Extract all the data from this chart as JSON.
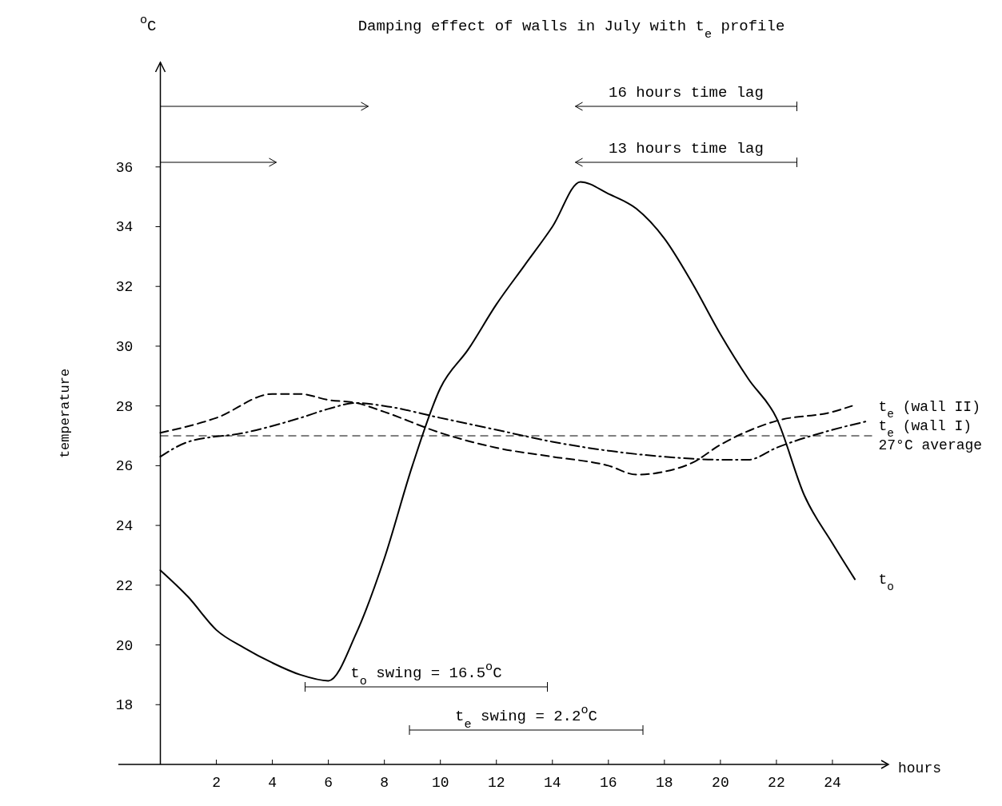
{
  "chart_data": {
    "type": "line",
    "title": "Damping effect of walls in July with t$_{e}$ profile",
    "xlabel": "hours",
    "ylabel": "temperature",
    "xlim": [
      -1.5,
      26
    ],
    "ylim": [
      16,
      39.5
    ],
    "xticks": [
      2,
      4,
      6,
      8,
      10,
      12,
      14,
      16,
      18,
      20,
      22,
      24
    ],
    "yticks": [
      18,
      20,
      22,
      24,
      26,
      28,
      30,
      32,
      34,
      36
    ],
    "grid": false,
    "series": [
      {
        "name": "t$_{o}$",
        "color": "#000000",
        "line_style": "solid",
        "x": [
          0,
          1,
          2,
          3,
          4,
          5,
          6,
          7,
          8,
          9,
          10,
          11,
          12,
          13,
          14,
          15,
          16,
          17,
          18,
          19,
          20,
          21,
          22,
          23,
          24,
          24.8
        ],
        "values": [
          22.5,
          21.6,
          20.5,
          19.9,
          19.4,
          19.0,
          18.8,
          20.4,
          22.9,
          26,
          28.6,
          29.9,
          31.4,
          32.7,
          34,
          35.5,
          35.1,
          34.6,
          33.6,
          32.1,
          30.4,
          28.9,
          27.6,
          25,
          23.4,
          22.2
        ]
      },
      {
        "name": "t$_{e}$ (wall II)",
        "color": "#000000",
        "line_style": "dashed",
        "x": [
          0,
          2,
          4,
          5,
          6,
          7,
          8,
          10,
          12,
          14,
          16,
          17,
          18,
          19,
          20,
          22,
          24,
          24.7
        ],
        "values": [
          27.1,
          27.6,
          28.4,
          28.4,
          28.2,
          28.1,
          27.8,
          27.1,
          26.6,
          26.3,
          26,
          25.7,
          25.8,
          26.1,
          26.7,
          27.5,
          27.8,
          28.0
        ]
      },
      {
        "name": "t$_{e}$ (wall I)",
        "color": "#000000",
        "line_style": "dashdot",
        "x": [
          0,
          1,
          3,
          5,
          6,
          7,
          8,
          10,
          12,
          14,
          16,
          18,
          20,
          21,
          22,
          24,
          25.3
        ],
        "values": [
          26.3,
          26.8,
          27.1,
          27.6,
          27.9,
          28.1,
          28,
          27.6,
          27.2,
          26.8,
          26.5,
          26.3,
          26.2,
          26.2,
          26.6,
          27.2,
          27.5
        ]
      }
    ],
    "ref_lines": [
      {
        "axis": "y",
        "value": 27,
        "label": "27°C average",
        "color": "#000000",
        "line_style": "dashed"
      }
    ],
    "annotations": [
      "$^{o}$C",
      "16 hours time lag",
      "13 hours time lag",
      "t$_{o}$ swing = 16.5$^{o}$C",
      "t$_{e}$ swing = 2.2$^{o}$C"
    ]
  }
}
